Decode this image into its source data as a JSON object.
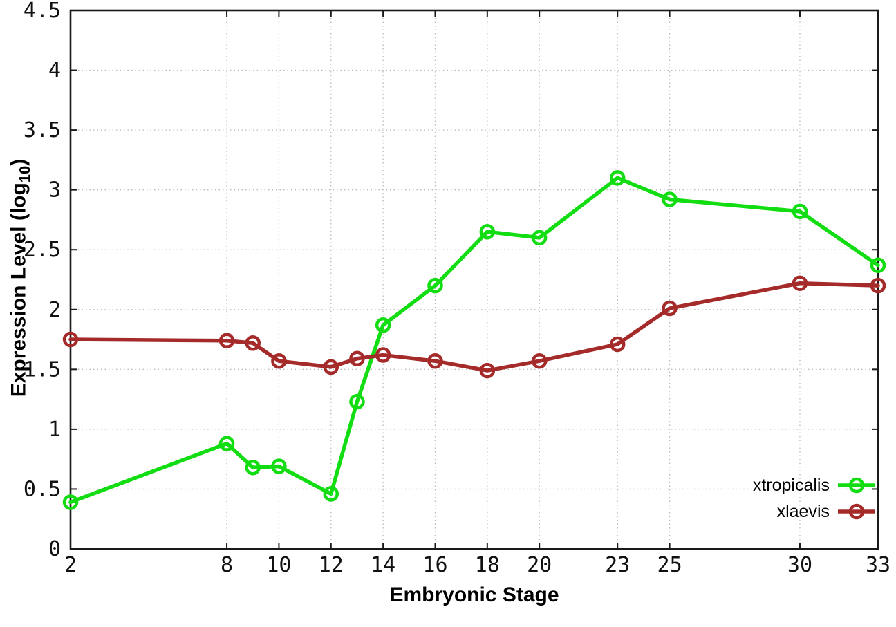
{
  "chart_data": {
    "type": "line",
    "title": "",
    "xlabel": "Embryonic Stage",
    "ylabel": "Expression Level (log10)",
    "ylabel_prefix": "Expression Level (log",
    "ylabel_sub": "10",
    "ylabel_suffix": ")",
    "x": [
      2,
      8,
      9,
      10,
      12,
      13,
      14,
      16,
      18,
      20,
      23,
      25,
      30,
      33
    ],
    "series": [
      {
        "name": "xtropicalis",
        "color": "#12DD12",
        "values": [
          0.39,
          0.88,
          0.68,
          0.69,
          0.46,
          1.23,
          1.87,
          2.2,
          2.65,
          2.6,
          3.1,
          2.92,
          2.82,
          2.37
        ]
      },
      {
        "name": "xlaevis",
        "color": "#A52A2A",
        "values": [
          1.75,
          1.74,
          1.72,
          1.57,
          1.52,
          1.59,
          1.62,
          1.57,
          1.49,
          1.57,
          1.71,
          2.01,
          2.22,
          2.2
        ]
      }
    ],
    "xticks": [
      2,
      8,
      10,
      12,
      14,
      16,
      18,
      20,
      23,
      25,
      30,
      33
    ],
    "yticks": [
      0,
      0.5,
      1,
      1.5,
      2,
      2.5,
      3,
      3.5,
      4,
      4.5
    ],
    "xlim": [
      2,
      33
    ],
    "ylim": [
      0,
      4.5
    ],
    "grid": true,
    "grid_style": "dotted",
    "legend_position": "bottom-right-inside",
    "colors": {
      "background": "#ffffff",
      "axis": "#1a1a1a",
      "grid": "#b9b9b9",
      "text": "#111111"
    }
  }
}
